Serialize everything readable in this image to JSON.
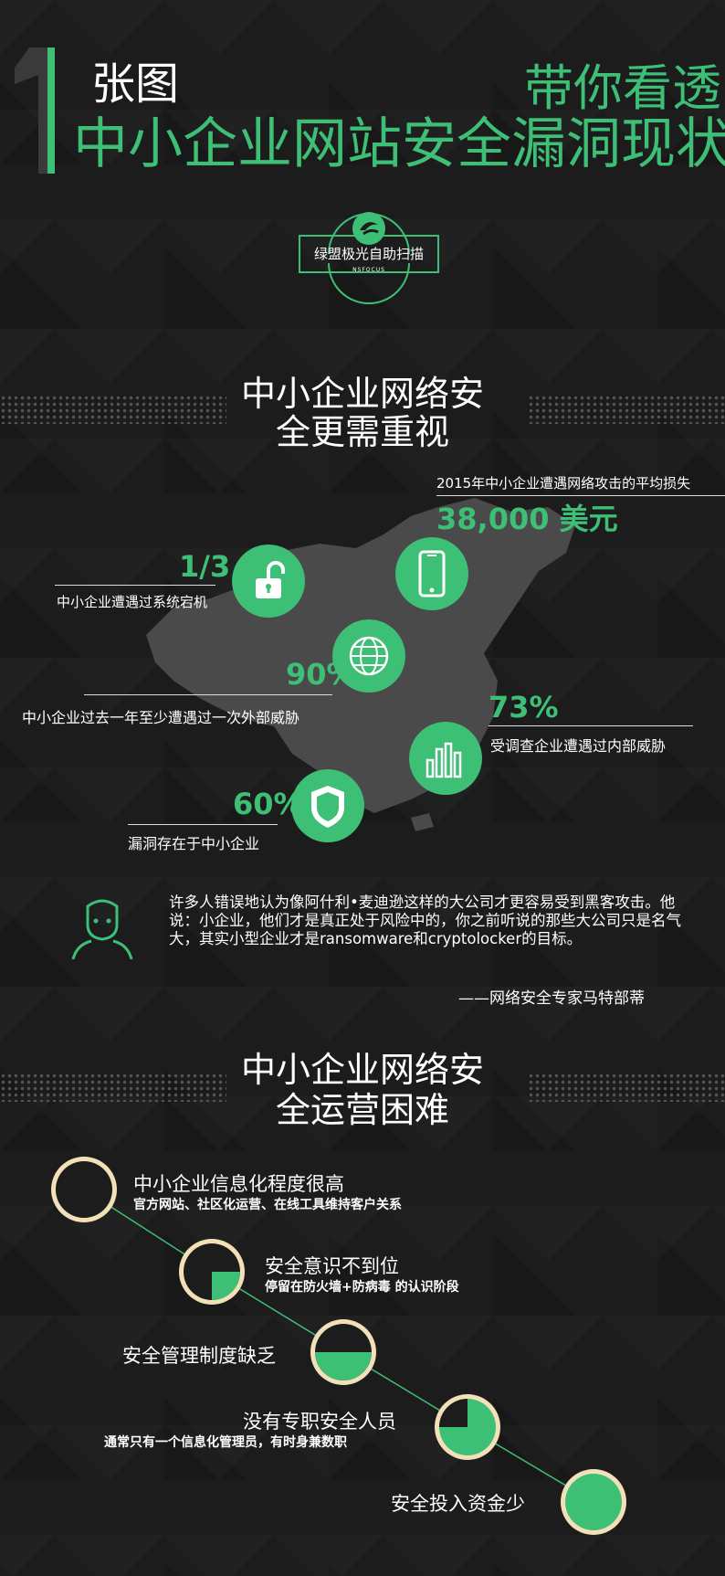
{
  "header": {
    "big_number": "1",
    "title_small": "张图",
    "title_right": "带你看透",
    "title_main": "中小企业网站安全漏洞现状"
  },
  "logo": {
    "name": "绿盟极光自助扫描",
    "brand": "NSFOCUS"
  },
  "section1": {
    "title_line1": "中小企业网络安",
    "title_line2": "全更需重视"
  },
  "stats": {
    "loss": {
      "label": "2015年中小企业遭遇网络攻击的平均损失",
      "value": "38,000 美元",
      "icon": "smartphone-icon"
    },
    "downtime": {
      "value": "1/3",
      "label": "中小企业遭遇过系统宕机",
      "icon": "unlock-icon"
    },
    "external": {
      "value": "90%",
      "label": "中小企业过去一年至少遭遇过一次外部威胁",
      "icon": "globe-icon"
    },
    "internal": {
      "value": "73%",
      "label": "受调查企业遭遇过内部威胁",
      "icon": "bar-chart-icon"
    },
    "vuln": {
      "value": "60%",
      "label": "漏洞存在于中小企业",
      "icon": "shield-icon"
    }
  },
  "quote": {
    "text": "许多人错误地认为像阿什利•麦迪逊这样的大公司才更容易受到黑客攻击。他说：小企业，他们才是真正处于风险中的，你之前听说的那些大公司只是名气大，其实小型企业才是ransomware和cryptolocker的目标。",
    "author": "——网络安全专家马特部蒂",
    "icon": "person-icon"
  },
  "section2": {
    "title_line1": "中小企业网络安",
    "title_line2": "全运营困难"
  },
  "difficulties": [
    {
      "title": "中小企业信息化程度很高",
      "sub": "官方网站、社区化运营、在线工具维持客户关系",
      "fill": 0
    },
    {
      "title": "安全意识不到位",
      "sub": "停留在防火墙+防病毒 的认识阶段",
      "fill": 0.25
    },
    {
      "title": "安全管理制度缺乏",
      "sub": "",
      "fill": 0.5
    },
    {
      "title": "没有专职安全人员",
      "sub": "通常只有一个信息化管理员，有时身兼数职",
      "fill": 0.75
    },
    {
      "title": "安全投入资金少",
      "sub": "",
      "fill": 1
    }
  ],
  "colors": {
    "accent": "#3dbf76",
    "ring": "#f3e0b8",
    "background": "#1c1c1c"
  }
}
